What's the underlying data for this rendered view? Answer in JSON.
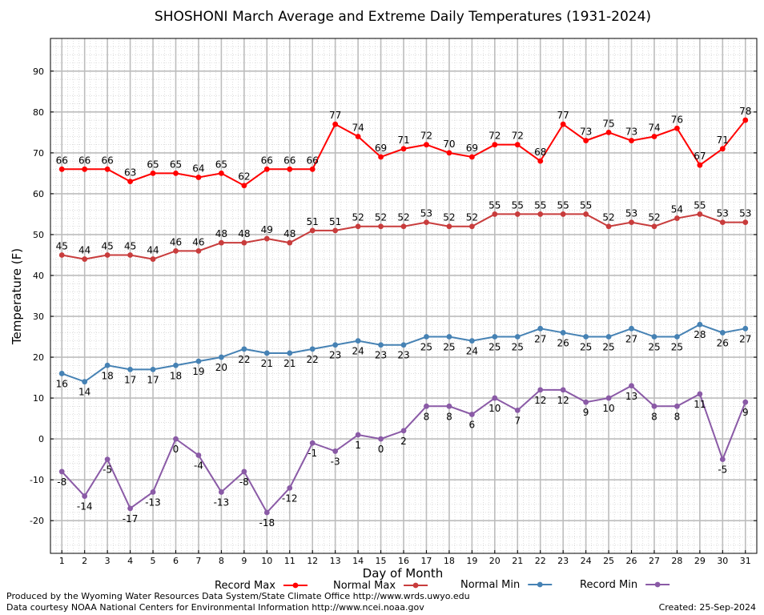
{
  "chart_data": {
    "type": "line",
    "title": "SHOSHONI March Average and Extreme Daily Temperatures (1931-2024)",
    "xlabel": "Day of Month",
    "ylabel": "Temperature (F)",
    "x": [
      1,
      2,
      3,
      4,
      5,
      6,
      7,
      8,
      9,
      10,
      11,
      12,
      13,
      14,
      15,
      16,
      17,
      18,
      19,
      20,
      21,
      22,
      23,
      24,
      25,
      26,
      27,
      28,
      29,
      30,
      31
    ],
    "xlim": [
      0.5,
      31.5
    ],
    "ylim": [
      -28,
      98
    ],
    "yticks": [
      -20,
      -10,
      0,
      10,
      20,
      30,
      40,
      50,
      60,
      70,
      80,
      90
    ],
    "grid": true,
    "legend_position": "bottom",
    "series": [
      {
        "name": "Record Max",
        "color": "#ff0000",
        "label_position": "above",
        "values": [
          66,
          66,
          66,
          63,
          65,
          65,
          64,
          65,
          62,
          66,
          66,
          66,
          77,
          74,
          69,
          71,
          72,
          70,
          69,
          72,
          72,
          68,
          77,
          73,
          75,
          73,
          74,
          76,
          67,
          71,
          78
        ]
      },
      {
        "name": "Normal Max",
        "color": "#c83c3c",
        "label_position": "above",
        "values": [
          45,
          44,
          45,
          45,
          44,
          46,
          46,
          48,
          48,
          49,
          48,
          51,
          51,
          52,
          52,
          52,
          53,
          52,
          52,
          55,
          55,
          55,
          55,
          55,
          52,
          53,
          52,
          54,
          55,
          53,
          53
        ]
      },
      {
        "name": "Normal Min",
        "color": "#4682b4",
        "label_position": "below",
        "values": [
          16,
          14,
          18,
          17,
          17,
          18,
          19,
          20,
          22,
          21,
          21,
          22,
          23,
          24,
          23,
          23,
          25,
          25,
          24,
          25,
          25,
          27,
          26,
          25,
          25,
          27,
          25,
          25,
          28,
          26,
          27
        ]
      },
      {
        "name": "Record Min",
        "color": "#8a5aa6",
        "label_position": "below",
        "values": [
          -8,
          -14,
          -5,
          -17,
          -13,
          0,
          -4,
          -13,
          -8,
          -18,
          -12,
          -1,
          -3,
          1,
          0,
          2,
          8,
          8,
          6,
          10,
          7,
          12,
          12,
          9,
          10,
          13,
          8,
          8,
          11,
          -5,
          9
        ]
      }
    ]
  },
  "footer": {
    "produced_by": "Produced by the Wyoming Water Resources Data System/State Climate Office http://www.wrds.uwyo.edu",
    "courtesy": "Data courtesy NOAA National Centers for Environmental Information http://www.ncei.noaa.gov",
    "created": "Created:  25-Sep-2024"
  }
}
